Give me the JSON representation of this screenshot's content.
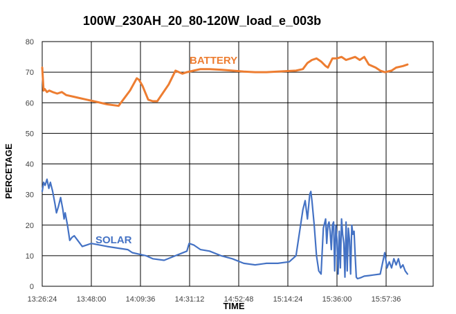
{
  "chart_data": {
    "type": "line",
    "title": "100W_230AH_20_80-120W_load_e_003b",
    "xlabel": "TIME",
    "ylabel": "PERCETAGE",
    "ylim": [
      0,
      80
    ],
    "yticks": [
      "0",
      "10",
      "20",
      "30",
      "40",
      "50",
      "60",
      "70",
      "80"
    ],
    "xticks": [
      "13:26:24",
      "13:48:00",
      "14:09:36",
      "14:31:12",
      "14:52:48",
      "15:14:24",
      "15:36:00",
      "15:57:36"
    ],
    "grid": true,
    "colors": {
      "battery": "#ed7d31",
      "solar": "#4472c4"
    },
    "series": [
      {
        "name": "BATTERY",
        "x": [
          "13:26:24",
          "13:27:00",
          "13:27:30",
          "13:28:30",
          "13:29:30",
          "13:31:00",
          "13:33:00",
          "13:35:00",
          "13:37:00",
          "13:40:00",
          "13:43:00",
          "13:46:00",
          "13:49:00",
          "13:55:00",
          "14:00:00",
          "14:05:00",
          "14:08:00",
          "14:09:00",
          "14:10:30",
          "14:13:00",
          "14:15:00",
          "14:17:00",
          "14:22:00",
          "14:25:00",
          "14:28:00",
          "14:30:00",
          "14:33:00",
          "14:36:00",
          "14:40:00",
          "14:45:00",
          "14:50:00",
          "14:55:00",
          "15:00:00",
          "15:05:00",
          "15:10:00",
          "15:15:00",
          "15:18:00",
          "15:21:00",
          "15:23:00",
          "15:25:00",
          "15:27:00",
          "15:29:00",
          "15:31:00",
          "15:32:00",
          "15:33:00",
          "15:34:00",
          "15:36:00",
          "15:38:00",
          "15:40:00",
          "15:42:00",
          "15:44:00",
          "15:46:00",
          "15:48:00",
          "15:50:00",
          "15:53:00",
          "15:55:00",
          "15:57:00",
          "16:00:00",
          "16:02:00",
          "16:05:00",
          "16:07:00"
        ],
        "values": [
          71.5,
          64,
          64.5,
          63.5,
          64,
          63.5,
          63,
          63.5,
          62.5,
          62,
          61.5,
          61,
          60.5,
          59.5,
          59,
          64,
          68,
          67.5,
          65.5,
          61,
          60.5,
          60.5,
          66,
          70.5,
          69.5,
          70,
          70.5,
          71,
          71,
          70.8,
          70.5,
          70.2,
          70,
          70,
          70.2,
          70.4,
          70.5,
          71,
          73,
          74,
          74.5,
          73.5,
          72,
          71.5,
          73,
          74.5,
          74.5,
          75,
          74,
          74.5,
          75,
          74,
          75,
          72.5,
          71.5,
          70.5,
          70,
          70.5,
          71.5,
          72,
          72.5
        ]
      },
      {
        "name": "SOLAR",
        "x": [
          "13:26:24",
          "13:27:00",
          "13:27:40",
          "13:28:30",
          "13:29:20",
          "13:30:00",
          "13:31:00",
          "13:32:00",
          "13:32:40",
          "13:33:30",
          "13:34:30",
          "13:35:30",
          "13:36:00",
          "13:36:30",
          "13:37:30",
          "13:38:30",
          "13:39:30",
          "13:40:30",
          "13:41:00",
          "13:42:00",
          "13:44:00",
          "13:46:00",
          "13:48:00",
          "13:55:00",
          "14:04:00",
          "14:06:00",
          "14:09:00",
          "14:12:00",
          "14:15:00",
          "14:20:00",
          "14:25:00",
          "14:30:00",
          "14:31:00",
          "14:33:00",
          "14:36:00",
          "14:40:00",
          "14:45:00",
          "14:50:00",
          "14:55:00",
          "15:00:00",
          "15:05:00",
          "15:10:00",
          "15:15:00",
          "15:18:00",
          "15:19:00",
          "15:20:00",
          "15:21:00",
          "15:22:00",
          "15:23:00",
          "15:24:00",
          "15:24:30",
          "15:25:00",
          "15:26:00",
          "15:27:00",
          "15:28:00",
          "15:29:00",
          "15:30:00",
          "15:31:00",
          "15:31:30",
          "15:32:00",
          "15:32:30",
          "15:33:00",
          "15:33:30",
          "15:34:00",
          "15:34:30",
          "15:35:00",
          "15:35:30",
          "15:36:00",
          "15:36:30",
          "15:37:00",
          "15:37:30",
          "15:38:00",
          "15:38:30",
          "15:39:00",
          "15:39:30",
          "15:40:00",
          "15:40:30",
          "15:41:00",
          "15:41:30",
          "15:42:00",
          "15:42:30",
          "15:43:00",
          "15:43:30",
          "15:44:00",
          "15:44:30",
          "15:45:00",
          "15:46:00",
          "15:47:00",
          "15:48:00",
          "15:50:00",
          "15:52:00",
          "15:55:00",
          "15:57:00",
          "15:58:00",
          "15:59:00",
          "16:00:00",
          "16:01:00",
          "16:02:00",
          "16:03:00",
          "16:04:00",
          "16:05:00",
          "16:06:00",
          "16:07:00"
        ],
        "values": [
          31,
          34,
          33,
          35,
          32,
          34,
          31,
          27,
          24,
          26,
          29,
          25,
          22,
          24,
          20,
          15,
          16,
          16.5,
          16,
          15,
          13,
          13.5,
          14,
          13,
          12,
          11,
          10.5,
          10,
          9,
          8.5,
          10,
          11.5,
          14,
          13.5,
          12,
          11.5,
          10,
          9,
          7.5,
          7,
          7.5,
          7.5,
          8,
          10,
          15,
          20,
          25,
          28,
          22,
          30,
          31,
          28,
          20,
          10,
          5,
          4,
          19,
          22,
          14,
          20,
          21,
          18,
          12,
          20,
          21,
          5,
          20,
          15,
          4,
          18,
          6,
          22,
          17,
          14,
          3,
          21,
          5,
          19,
          15,
          4,
          20,
          17,
          18,
          10,
          3,
          2.5,
          2.7,
          3,
          3.3,
          3.5,
          3.7,
          4,
          11,
          6,
          8,
          6,
          9,
          7,
          9,
          6,
          7,
          5,
          4
        ]
      }
    ]
  }
}
